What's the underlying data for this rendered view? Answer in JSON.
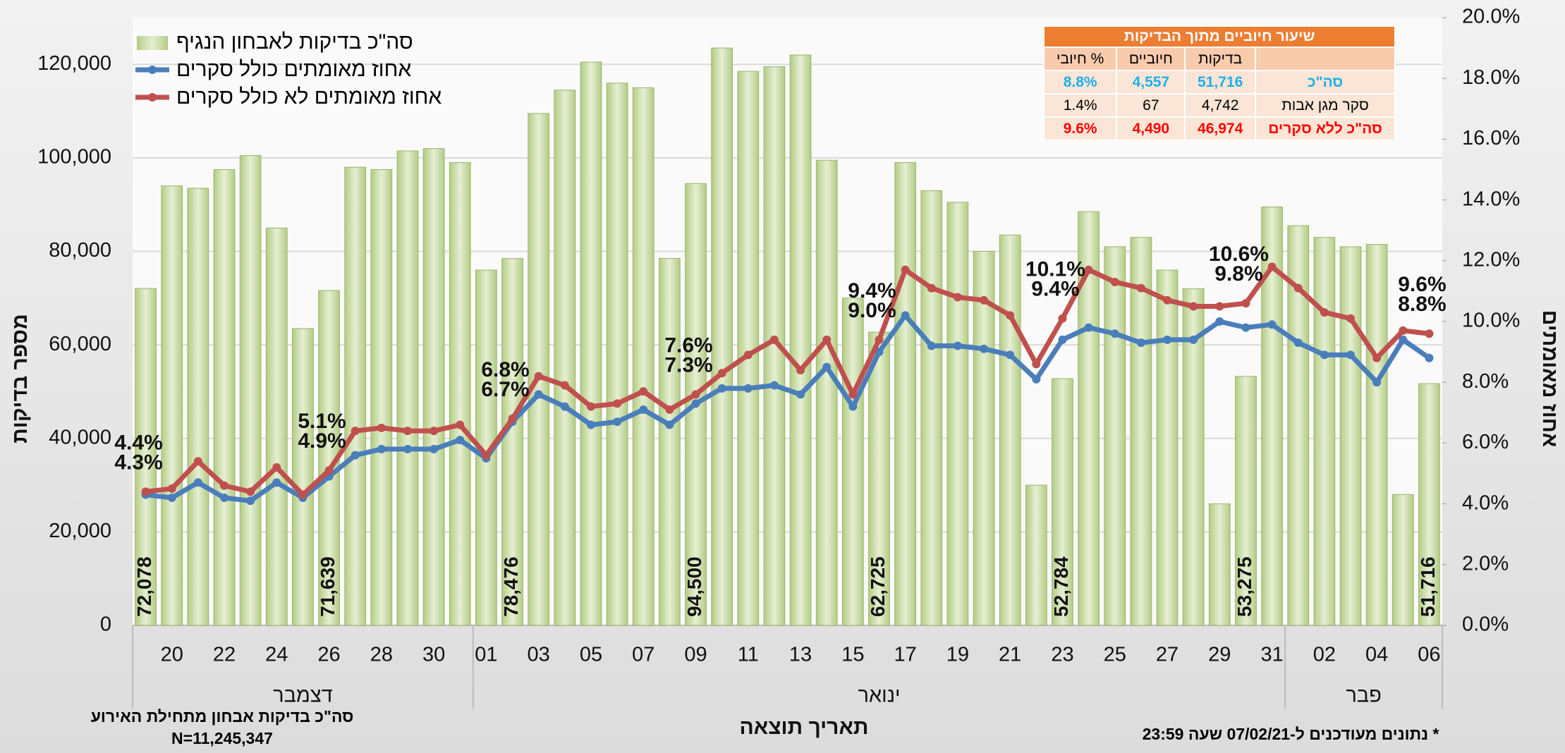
{
  "chart_data": {
    "type": "bar",
    "y_label": "מספר בדיקות",
    "y2_label": "אחוז מאומתים",
    "x_label": "תאריך תוצאה",
    "months": [
      "דצמבר",
      "ינואר",
      "פבר"
    ],
    "categories": [
      null,
      "20",
      null,
      "22",
      null,
      "24",
      null,
      "26",
      null,
      "28",
      null,
      "30",
      null,
      "01",
      null,
      "03",
      null,
      "05",
      null,
      "07",
      null,
      "09",
      null,
      "11",
      null,
      "13",
      null,
      "15",
      null,
      "17",
      null,
      "19",
      null,
      "21",
      null,
      "23",
      null,
      "25",
      null,
      "27",
      null,
      "29",
      null,
      "31",
      null,
      "02",
      null,
      "04",
      null,
      "06"
    ],
    "series": [
      {
        "name": "סה\"כ בדיקות לאבחון הנגיף",
        "type": "bar",
        "color": "#b3cc84",
        "values": [
          72078,
          94000,
          93500,
          97500,
          100500,
          85000,
          63500,
          71639,
          98000,
          97500,
          101500,
          102000,
          99000,
          76000,
          78476,
          109500,
          114500,
          120500,
          116000,
          115000,
          78500,
          94500,
          123500,
          118500,
          119500,
          122000,
          99500,
          70000,
          62725,
          99000,
          93000,
          90500,
          80000,
          83500,
          30000,
          52784,
          88500,
          81000,
          83000,
          76000,
          72000,
          26000,
          53275,
          89500,
          85500,
          83000,
          81000,
          81500,
          28000,
          51716
        ],
        "value_labels": [
          "72,078",
          null,
          null,
          null,
          null,
          null,
          null,
          "71,639",
          null,
          null,
          null,
          null,
          null,
          null,
          "78,476",
          null,
          null,
          null,
          null,
          null,
          null,
          "94,500",
          null,
          null,
          null,
          null,
          null,
          null,
          "62,725",
          null,
          null,
          null,
          null,
          null,
          null,
          "52,784",
          null,
          null,
          null,
          null,
          null,
          null,
          "53,275",
          null,
          null,
          null,
          null,
          null,
          null,
          "51,716"
        ]
      },
      {
        "name": "אחוז מאומתים כולל סקרים",
        "type": "line",
        "axis": "y2",
        "color": "#4a7ebb",
        "values": [
          4.3,
          4.2,
          4.7,
          4.2,
          4.1,
          4.7,
          4.2,
          4.9,
          5.6,
          5.8,
          5.8,
          5.8,
          6.1,
          5.5,
          6.7,
          7.6,
          7.2,
          6.6,
          6.7,
          7.1,
          6.6,
          7.3,
          7.8,
          7.8,
          7.9,
          7.6,
          8.5,
          7.2,
          9.0,
          10.2,
          9.2,
          9.2,
          9.1,
          8.9,
          8.1,
          9.4,
          9.8,
          9.6,
          9.3,
          9.4,
          9.4,
          10.0,
          9.8,
          9.9,
          9.3,
          8.9,
          8.9,
          8.0,
          9.4,
          8.8
        ],
        "value_labels": [
          "4.3%",
          null,
          null,
          null,
          null,
          null,
          null,
          "4.9%",
          null,
          null,
          null,
          null,
          null,
          null,
          "6.7%",
          null,
          null,
          null,
          null,
          null,
          null,
          "7.3%",
          null,
          null,
          null,
          null,
          null,
          null,
          "9.0%",
          null,
          null,
          null,
          null,
          null,
          null,
          "9.4%",
          null,
          null,
          null,
          null,
          null,
          null,
          "9.8%",
          null,
          null,
          null,
          null,
          null,
          null,
          "8.8%"
        ]
      },
      {
        "name": "אחוז מאומתים לא כולל סקרים",
        "type": "line",
        "axis": "y2",
        "color": "#c0504d",
        "values": [
          4.4,
          4.5,
          5.4,
          4.6,
          4.4,
          5.2,
          4.3,
          5.1,
          6.4,
          6.5,
          6.4,
          6.4,
          6.6,
          5.6,
          6.8,
          8.2,
          7.9,
          7.2,
          7.3,
          7.7,
          7.1,
          7.6,
          8.3,
          8.9,
          9.4,
          8.4,
          9.4,
          7.6,
          9.4,
          11.7,
          11.1,
          10.8,
          10.7,
          10.2,
          8.6,
          10.1,
          11.7,
          11.3,
          11.1,
          10.7,
          10.5,
          10.5,
          10.6,
          11.8,
          11.1,
          10.3,
          10.1,
          8.8,
          9.7,
          9.6
        ],
        "value_labels": [
          "4.4%",
          null,
          null,
          null,
          null,
          null,
          null,
          "5.1%",
          null,
          null,
          null,
          null,
          null,
          null,
          "6.8%",
          null,
          null,
          null,
          null,
          null,
          null,
          "7.6%",
          null,
          null,
          null,
          null,
          null,
          null,
          "9.4%",
          null,
          null,
          null,
          null,
          null,
          null,
          "10.1%",
          null,
          null,
          null,
          null,
          null,
          null,
          "10.6%",
          null,
          null,
          null,
          null,
          null,
          null,
          "9.6%"
        ]
      }
    ],
    "ylim": [
      0,
      130000
    ],
    "yticks": [
      0,
      {
        "value": 20000,
        "label": "20,000"
      },
      {
        "value": 40000,
        "label": "40,000"
      },
      {
        "value": 60000,
        "label": "60,000"
      },
      {
        "value": 80000,
        "label": "80,000"
      },
      {
        "value": 100000,
        "label": "100,000"
      },
      {
        "value": 120000,
        "label": "120,000"
      }
    ],
    "y2lim": [
      0,
      20
    ],
    "y2ticks": [
      {
        "value": 0,
        "label": "0.0%"
      },
      {
        "value": 2,
        "label": "2.0%"
      },
      {
        "value": 4,
        "label": "4.0%"
      },
      {
        "value": 6,
        "label": "6.0%"
      },
      {
        "value": 8,
        "label": "8.0%"
      },
      {
        "value": 10,
        "label": "10.0%"
      },
      {
        "value": 12,
        "label": "12.0%"
      },
      {
        "value": 14,
        "label": "14.0%"
      },
      {
        "value": 16,
        "label": "16.0%"
      },
      {
        "value": 18,
        "label": "18.0%"
      },
      {
        "value": 20,
        "label": "20.0%"
      }
    ],
    "grid": true,
    "legend": "top-left"
  },
  "table": {
    "title": "שיעור חיוביים מתוך הבדיקות",
    "header": [
      "",
      "בדיקות",
      "חיוביים",
      "% חיובי"
    ],
    "rows": [
      [
        "סה\"כ",
        "51,716",
        "4,557",
        "8.8%"
      ],
      [
        "סקר  מגן אבות",
        "4,742",
        "67",
        "1.4%"
      ],
      [
        "סה\"כ ללא סקרים",
        "46,974",
        "4,490",
        "9.6%"
      ]
    ]
  },
  "notes": {
    "total_label": "סה\"כ בדיקות אבחון מתחילת האירוע",
    "total_value": "N=11,245,347",
    "updated": "* נתונים מעודכנים ל-07/02/21 שעה 23:59"
  }
}
